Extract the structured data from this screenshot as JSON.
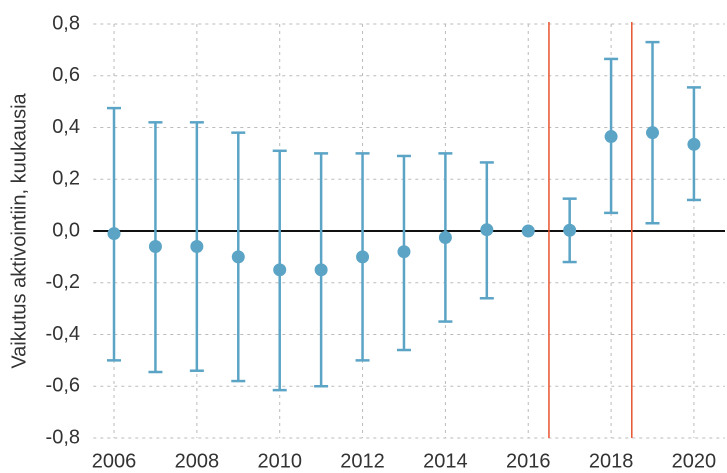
{
  "chart_data": {
    "type": "errorbar",
    "y_label": "Vaikutus aktivointiin, kuukausia",
    "x": [
      2006,
      2007,
      2008,
      2009,
      2010,
      2011,
      2012,
      2013,
      2014,
      2015,
      2016,
      2017,
      2018,
      2019,
      2020
    ],
    "series": [
      {
        "color": "#5ba4c6",
        "values": [
          -0.01,
          -0.06,
          -0.06,
          -0.1,
          -0.15,
          -0.15,
          -0.1,
          -0.08,
          -0.025,
          0.005,
          0,
          0.003,
          0.365,
          0.38,
          0.335
        ],
        "lower": [
          -0.5,
          -0.545,
          -0.54,
          -0.58,
          -0.615,
          -0.6,
          -0.5,
          -0.46,
          -0.35,
          -0.26,
          null,
          -0.12,
          0.07,
          0.03,
          0.12
        ],
        "upper": [
          0.475,
          0.42,
          0.42,
          0.38,
          0.31,
          0.3,
          0.3,
          0.29,
          0.3,
          0.265,
          null,
          0.125,
          0.665,
          0.73,
          0.555
        ]
      }
    ],
    "xlim": [
      2005.5,
      2020.75
    ],
    "xticks": [
      2006,
      2008,
      2010,
      2012,
      2014,
      2016,
      2018,
      2020
    ],
    "ylim": [
      -0.8,
      0.8
    ],
    "yticks": [
      {
        "value": -0.8,
        "label": "-0,8"
      },
      {
        "value": -0.6,
        "label": "-0,6"
      },
      {
        "value": -0.4,
        "label": "-0,4"
      },
      {
        "value": -0.2,
        "label": "-0,2"
      },
      {
        "value": 0,
        "label": "0,0"
      },
      {
        "value": 0.2,
        "label": "0,2"
      },
      {
        "value": 0.4,
        "label": "0,4"
      },
      {
        "value": 0.6,
        "label": "0,6"
      },
      {
        "value": 0.8,
        "label": "0,8"
      }
    ],
    "grid": true,
    "vlines": [
      2016.5,
      2018.5
    ],
    "vline_color": "#e8532f"
  }
}
